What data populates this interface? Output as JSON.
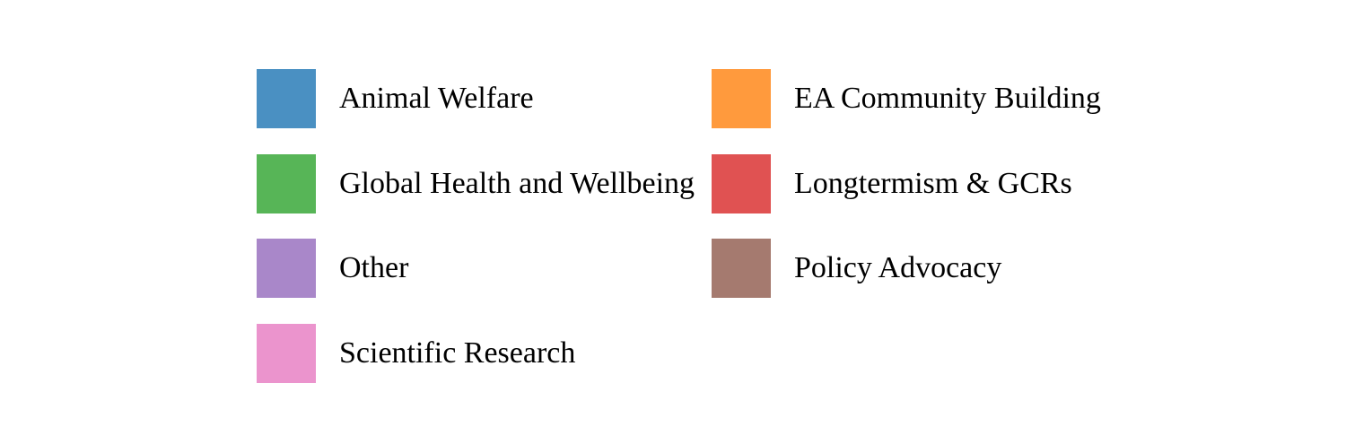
{
  "chart_data": {
    "type": "legend",
    "legend": {
      "columns": 2,
      "entries": [
        {
          "label": "Animal Welfare",
          "color": "#4a90c2"
        },
        {
          "label": "EA Community Building",
          "color": "#ff9a3d"
        },
        {
          "label": "Global Health and Wellbeing",
          "color": "#57b557"
        },
        {
          "label": "Longtermism & GCRs",
          "color": "#e05252"
        },
        {
          "label": "Other",
          "color": "#a987c9"
        },
        {
          "label": "Policy Advocacy",
          "color": "#a57a6f"
        },
        {
          "label": "Scientific Research",
          "color": "#eb94cd"
        }
      ]
    }
  }
}
